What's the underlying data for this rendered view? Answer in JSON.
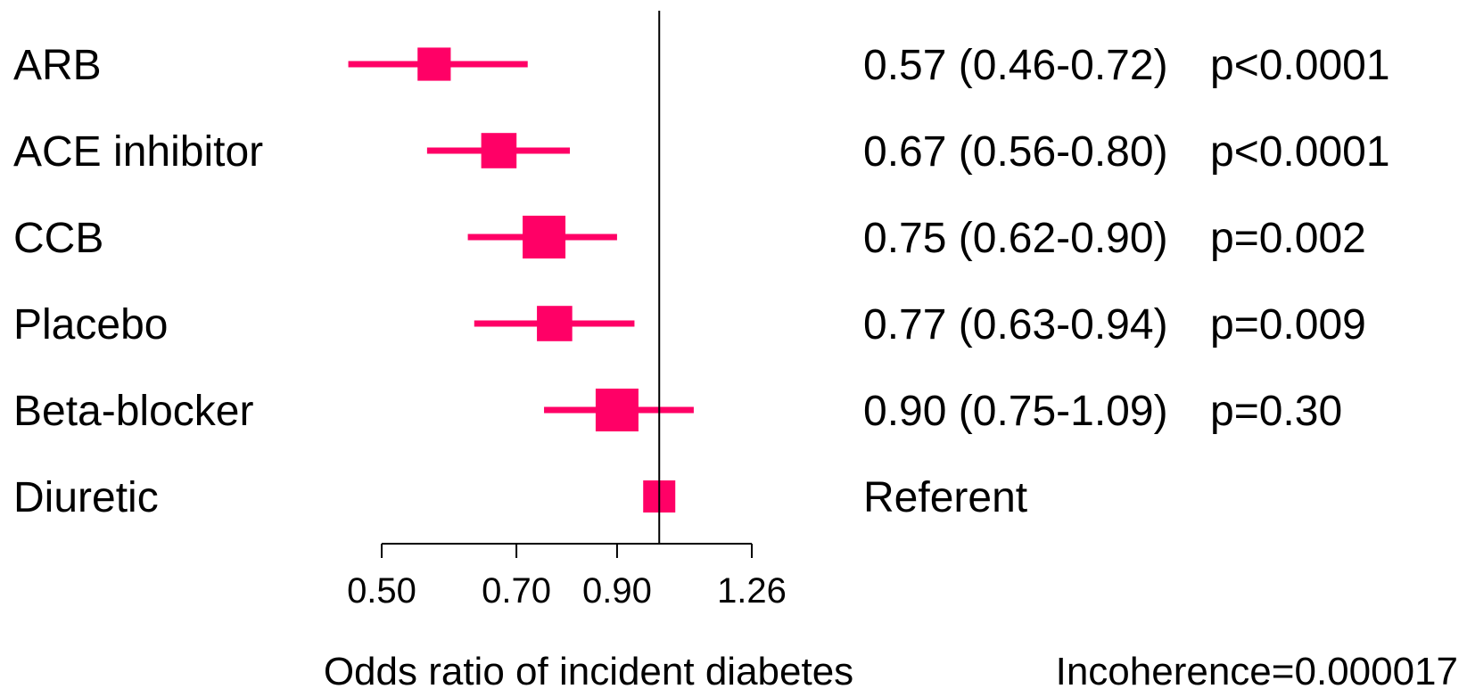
{
  "chart_data": {
    "type": "forest",
    "xscale": "log",
    "xlabel": "Odds ratio of incident diabetes",
    "x_ticks": [
      "0.50",
      "0.70",
      "0.90",
      "1.26"
    ],
    "x_tick_values": [
      0.5,
      0.7,
      0.9,
      1.26
    ],
    "reference_line": 1.0,
    "marker_color": "#ff0066",
    "rows": [
      {
        "label": "ARB",
        "or": 0.57,
        "lower": 0.46,
        "upper": 0.72,
        "result": "0.57 (0.46-0.72)",
        "p": "p<0.0001",
        "weight": 0.55
      },
      {
        "label": "ACE inhibitor",
        "or": 0.67,
        "lower": 0.56,
        "upper": 0.8,
        "result": "0.67 (0.56-0.80)",
        "p": "p<0.0001",
        "weight": 0.65
      },
      {
        "label": "CCB",
        "or": 0.75,
        "lower": 0.62,
        "upper": 0.9,
        "result": "0.75 (0.62-0.90)",
        "p": "p=0.002",
        "weight": 1.0
      },
      {
        "label": "Placebo",
        "or": 0.77,
        "lower": 0.63,
        "upper": 0.94,
        "result": "0.77 (0.63-0.94)",
        "p": "p=0.009",
        "weight": 0.65
      },
      {
        "label": "Beta-blocker",
        "or": 0.9,
        "lower": 0.75,
        "upper": 1.09,
        "result": "0.90 (0.75-1.09)",
        "p": "p=0.30",
        "weight": 1.0
      },
      {
        "label": "Diuretic",
        "or": 1.0,
        "lower": null,
        "upper": null,
        "result": "Referent",
        "p": "",
        "weight": 0.5
      }
    ],
    "footnote": "Incoherence=0.000017"
  }
}
